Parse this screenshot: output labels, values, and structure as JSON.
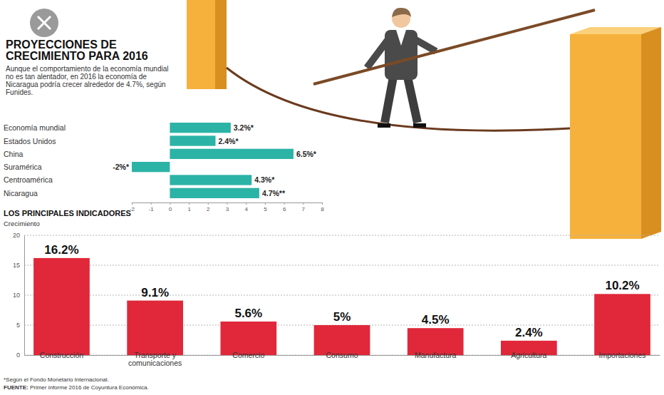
{
  "chart_data": [
    {
      "type": "bar",
      "orientation": "horizontal",
      "title": "PROYECCIONES DE CRECIMIENTO PARA 2016",
      "subtitle": "Aunque el comportamiento de la economía mundial no es tan alentador, en 2016 la economía de Nicaragua podría crecer alrededor de 4.7%, según Funides.",
      "categories": [
        "Economía mundial",
        "Estados Unidos",
        "China",
        "Suramérica",
        "Centroamérica",
        "Nicaragua"
      ],
      "values": [
        3.2,
        2.4,
        6.5,
        -2,
        4.3,
        4.7
      ],
      "value_labels": [
        "3.2%*",
        "2.4%*",
        "6.5%*",
        "-2%*",
        "4.3%*",
        "4.7%**"
      ],
      "color": "#2bb3a6",
      "xlim": [
        -2,
        8
      ],
      "xticks": [
        -2,
        -1,
        0,
        1,
        2,
        3,
        4,
        5,
        6,
        7,
        8
      ],
      "grid": false,
      "data_labels": true
    },
    {
      "type": "bar",
      "title": "LOS PRINCIPALES INDICADORES",
      "y_label": "Crecimiento",
      "categories": [
        "Construcción",
        "Transporte y comunicaciones",
        "Comercio",
        "Consumo",
        "Manufactura",
        "Agricultura",
        "Importaciones"
      ],
      "values": [
        16.2,
        9.1,
        5.6,
        5,
        4.5,
        2.4,
        10.2
      ],
      "value_labels": [
        "16.2%",
        "9.1%",
        "5.6%",
        "5%",
        "4.5%",
        "2.4%",
        "10.2%"
      ],
      "color": "#e0283a",
      "ylim": [
        0,
        20
      ],
      "yticks": [
        0,
        5,
        10,
        15,
        20
      ],
      "grid": true,
      "data_labels": true,
      "annotations": [
        "*Según el Fondo Monetario Internacional.",
        "FUENTE: Primer informe 2016 de Coyuntura Económica."
      ]
    }
  ]
}
